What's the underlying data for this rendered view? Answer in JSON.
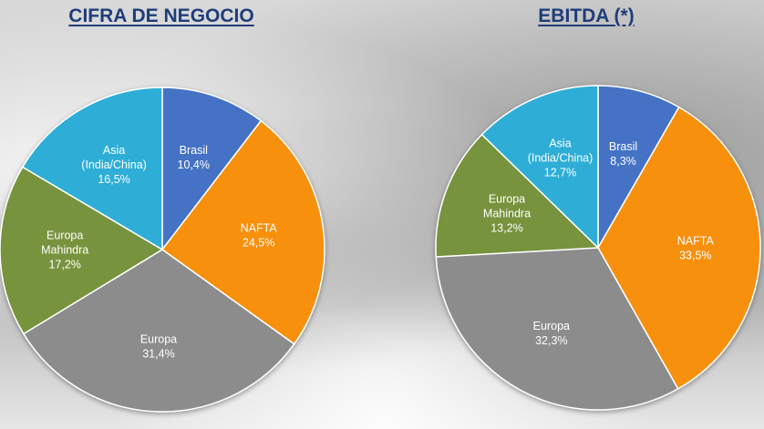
{
  "chart_data": [
    {
      "type": "pie",
      "title": "CIFRA DE NEGOCIO",
      "slices": [
        {
          "label": [
            "Brasil"
          ],
          "value_text": "10,4%",
          "value": 10.4,
          "color": "#4472c4"
        },
        {
          "label": [
            "NAFTA"
          ],
          "value_text": "24,5%",
          "value": 24.5,
          "color": "#f79009"
        },
        {
          "label": [
            "Europa"
          ],
          "value_text": "31,4%",
          "value": 31.4,
          "color": "#8c8c8c"
        },
        {
          "label": [
            "Europa",
            "Mahindra"
          ],
          "value_text": "17,2%",
          "value": 17.2,
          "color": "#77933c"
        },
        {
          "label": [
            "Asia",
            "(India/China)"
          ],
          "value_text": "16,5%",
          "value": 16.5,
          "color": "#2eaed6"
        }
      ]
    },
    {
      "type": "pie",
      "title": "EBITDA (*)",
      "slices": [
        {
          "label": [
            "Brasil"
          ],
          "value_text": "8,3%",
          "value": 8.3,
          "color": "#4472c4"
        },
        {
          "label": [
            "NAFTA"
          ],
          "value_text": "33,5%",
          "value": 33.5,
          "color": "#f79009"
        },
        {
          "label": [
            "Europa"
          ],
          "value_text": "32,3%",
          "value": 32.3,
          "color": "#8c8c8c"
        },
        {
          "label": [
            "Europa",
            "Mahindra"
          ],
          "value_text": "13,2%",
          "value": 13.2,
          "color": "#77933c"
        },
        {
          "label": [
            "Asia",
            "(India/China)"
          ],
          "value_text": "12,7%",
          "value": 12.7,
          "color": "#2eaed6"
        }
      ]
    }
  ]
}
